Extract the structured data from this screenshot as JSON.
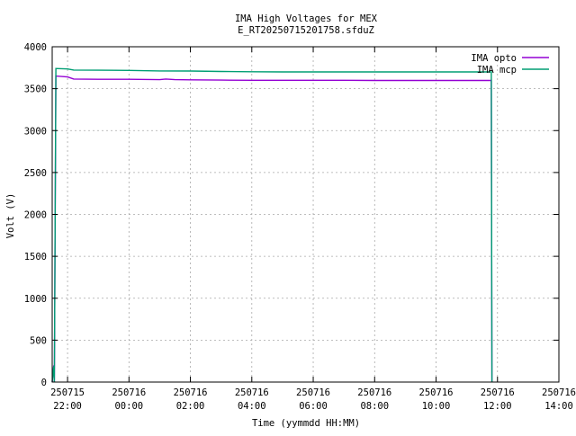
{
  "chart_data": {
    "type": "line",
    "title": "IMA High Voltages for MEX",
    "subtitle": "E_RT20250715201758.sfduZ",
    "xlabel": "Time (yymmdd HH:MM)",
    "ylabel": "Volt (V)",
    "ylim": [
      0,
      4000
    ],
    "yticks": [
      0,
      500,
      1000,
      1500,
      2000,
      2500,
      3000,
      3500,
      4000
    ],
    "xlim_hours": [
      -0.5,
      16
    ],
    "xtick_hours": [
      0,
      2,
      4,
      6,
      8,
      10,
      12,
      14,
      16
    ],
    "xticks": [
      {
        "date": "250715",
        "time": "22:00"
      },
      {
        "date": "250716",
        "time": "00:00"
      },
      {
        "date": "250716",
        "time": "02:00"
      },
      {
        "date": "250716",
        "time": "04:00"
      },
      {
        "date": "250716",
        "time": "06:00"
      },
      {
        "date": "250716",
        "time": "08:00"
      },
      {
        "date": "250716",
        "time": "10:00"
      },
      {
        "date": "250716",
        "time": "12:00"
      },
      {
        "date": "250716",
        "time": "14:00"
      }
    ],
    "grid": true,
    "legend_position": "top-right",
    "series": [
      {
        "name": "IMA opto",
        "color": "#9400d3",
        "points": [
          [
            -0.5,
            0
          ],
          [
            -0.45,
            200
          ],
          [
            -0.43,
            0
          ],
          [
            -0.38,
            3650
          ],
          [
            0,
            3640
          ],
          [
            0.2,
            3615
          ],
          [
            1,
            3612
          ],
          [
            2,
            3612
          ],
          [
            3,
            3608
          ],
          [
            3.2,
            3615
          ],
          [
            3.5,
            3608
          ],
          [
            4,
            3605
          ],
          [
            5,
            3602
          ],
          [
            6,
            3600
          ],
          [
            7,
            3600
          ],
          [
            8,
            3600
          ],
          [
            9,
            3600
          ],
          [
            10,
            3598
          ],
          [
            11,
            3598
          ],
          [
            12,
            3598
          ],
          [
            13.8,
            3598
          ],
          [
            13.82,
            0
          ]
        ]
      },
      {
        "name": "IMA mcp",
        "color": "#009e73",
        "points": [
          [
            -0.5,
            0
          ],
          [
            -0.45,
            190
          ],
          [
            -0.43,
            0
          ],
          [
            -0.38,
            3740
          ],
          [
            0,
            3735
          ],
          [
            0.2,
            3722
          ],
          [
            1,
            3720
          ],
          [
            2,
            3718
          ],
          [
            3,
            3712
          ],
          [
            4,
            3710
          ],
          [
            5,
            3705
          ],
          [
            6,
            3702
          ],
          [
            7,
            3700
          ],
          [
            8,
            3700
          ],
          [
            9,
            3700
          ],
          [
            10,
            3700
          ],
          [
            11,
            3700
          ],
          [
            12,
            3700
          ],
          [
            13.8,
            3700
          ],
          [
            13.82,
            0
          ]
        ]
      }
    ]
  }
}
